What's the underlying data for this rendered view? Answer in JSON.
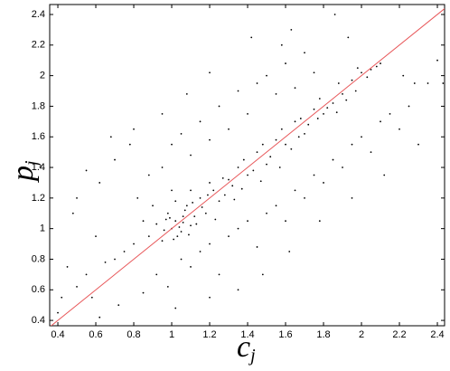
{
  "chart_data": {
    "type": "scatter",
    "xlabel": "c",
    "xlabel_sub": "j",
    "ylabel": "p",
    "ylabel_sub": "j",
    "xlim": [
      0.357,
      2.438
    ],
    "ylim": [
      0.365,
      2.465
    ],
    "xticks": [
      0.4,
      0.6,
      0.8,
      1,
      1.2,
      1.4,
      1.6,
      1.8,
      2,
      2.2,
      2.4
    ],
    "yticks": [
      0.4,
      0.6,
      0.8,
      1,
      1.2,
      1.4,
      1.6,
      1.8,
      2,
      2.2,
      2.4
    ],
    "fit_line": {
      "color": "#e8585a",
      "x": [
        0.357,
        2.438
      ],
      "y": [
        0.357,
        2.438
      ]
    },
    "series": [
      {
        "color": "#000000",
        "x": [
          1.02,
          1.05,
          0.98,
          1.1,
          1.08,
          0.95,
          1.12,
          1.0,
          1.15,
          1.03,
          1.07,
          0.92,
          1.18,
          1.22,
          1.25,
          1.3,
          1.28,
          1.35,
          1.4,
          1.45,
          1.5,
          1.55,
          1.6,
          1.65,
          1.7,
          1.75,
          1.8,
          1.85,
          1.9,
          1.95,
          2.0,
          2.05,
          2.08,
          2.1,
          2.03,
          1.98,
          1.88,
          1.78,
          1.68,
          1.58,
          1.48,
          1.38,
          1.32,
          1.2,
          1.1,
          0.9,
          0.88,
          0.85,
          0.8,
          0.75,
          0.7,
          0.65,
          0.6,
          0.55,
          0.5,
          0.45,
          0.42,
          0.48,
          0.62,
          0.7,
          0.78,
          0.82,
          0.88,
          0.95,
          1.0,
          1.05,
          1.1,
          1.15,
          1.2,
          1.25,
          1.3,
          1.35,
          1.4,
          1.45,
          1.5,
          1.55,
          1.6,
          1.65,
          1.7,
          1.75,
          1.42,
          1.2,
          1.08,
          0.95,
          0.68,
          0.55,
          1.05,
          1.1,
          1.15,
          1.2,
          1.25,
          1.3,
          1.35,
          1.4,
          1.45,
          1.5,
          1.55,
          1.6,
          1.65,
          1.7,
          1.75,
          1.8,
          1.85,
          1.9,
          1.95,
          2.0,
          2.05,
          2.1,
          2.15,
          2.2,
          2.25,
          2.3,
          2.35,
          2.4,
          2.28,
          2.12,
          1.95,
          1.78,
          1.62,
          1.48,
          1.35,
          1.2,
          1.02,
          0.98,
          0.92,
          0.85,
          0.72,
          0.62,
          0.58,
          0.8,
          1.0,
          1.02,
          1.06,
          1.09,
          1.13,
          1.16,
          1.19,
          1.23,
          1.27,
          1.33,
          1.37,
          1.43,
          1.47,
          1.52,
          1.57,
          1.63,
          1.67,
          1.72,
          1.77,
          1.82,
          1.87,
          1.92,
          1.97,
          0.99,
          1.04,
          0.96,
          1.01,
          1.06,
          0.97,
          1.11,
          1.93,
          1.58,
          2.22,
          2.43,
          0.5,
          0.4,
          1.63,
          1.86
        ],
        "values": [
          1.05,
          0.98,
          1.1,
          1.02,
          1.15,
          0.92,
          1.08,
          1.0,
          1.2,
          0.95,
          1.12,
          1.03,
          1.1,
          1.25,
          1.18,
          1.32,
          1.22,
          1.4,
          1.35,
          1.5,
          1.42,
          1.58,
          1.55,
          1.7,
          1.62,
          1.78,
          1.75,
          1.82,
          1.88,
          1.97,
          2.02,
          2.04,
          2.06,
          2.08,
          1.99,
          2.05,
          1.95,
          1.85,
          1.72,
          1.65,
          1.55,
          1.45,
          1.28,
          1.3,
          1.25,
          1.15,
          0.95,
          1.05,
          0.9,
          0.85,
          0.8,
          0.78,
          0.95,
          0.7,
          0.62,
          0.75,
          0.55,
          1.1,
          1.3,
          1.45,
          1.55,
          1.2,
          1.35,
          1.4,
          1.55,
          1.62,
          1.48,
          1.7,
          1.58,
          1.8,
          1.65,
          1.9,
          1.75,
          1.95,
          2.0,
          1.88,
          2.08,
          1.92,
          2.15,
          2.02,
          2.25,
          2.02,
          1.88,
          1.75,
          1.6,
          1.38,
          0.8,
          0.75,
          0.85,
          0.9,
          0.7,
          0.95,
          1.0,
          1.05,
          0.88,
          1.1,
          1.15,
          1.05,
          1.25,
          1.2,
          1.35,
          1.3,
          1.45,
          1.4,
          1.55,
          1.6,
          1.5,
          1.7,
          1.75,
          1.65,
          1.8,
          1.55,
          1.95,
          2.1,
          1.95,
          1.35,
          1.2,
          1.05,
          0.85,
          0.7,
          0.6,
          0.55,
          0.48,
          0.62,
          0.7,
          0.58,
          0.5,
          0.42,
          0.55,
          1.65,
          1.25,
          1.18,
          1.08,
          0.96,
          1.03,
          1.14,
          1.22,
          1.06,
          1.33,
          1.19,
          1.26,
          1.38,
          1.31,
          1.47,
          1.4,
          1.52,
          1.6,
          1.68,
          1.72,
          1.79,
          1.76,
          1.84,
          1.9,
          1.07,
          1.01,
          0.99,
          0.93,
          1.04,
          1.06,
          1.17,
          2.25,
          2.2,
          2.0,
          1.95,
          1.2,
          0.45,
          2.3,
          2.4
        ]
      }
    ]
  }
}
